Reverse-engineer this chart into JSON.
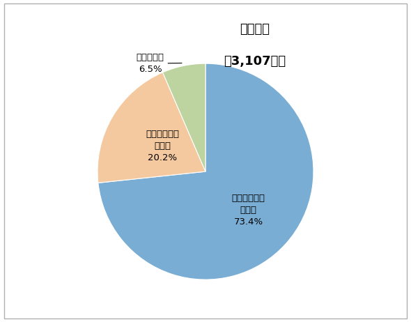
{
  "title_line1": "無延滞者",
  "title_line2": "（3,107人）",
  "slices": [
    73.4,
    20.2,
    6.5
  ],
  "label1": "延滞したこと\nがない\n73.4%",
  "label2": "延滞したこと\nがある\n20.2%",
  "label3": "わからない\n6.5%",
  "colors": [
    "#7aadd4",
    "#f5c9a0",
    "#bdd4a0"
  ],
  "startangle": 90,
  "background_color": "#ffffff",
  "border_color": "#b0b0b0"
}
